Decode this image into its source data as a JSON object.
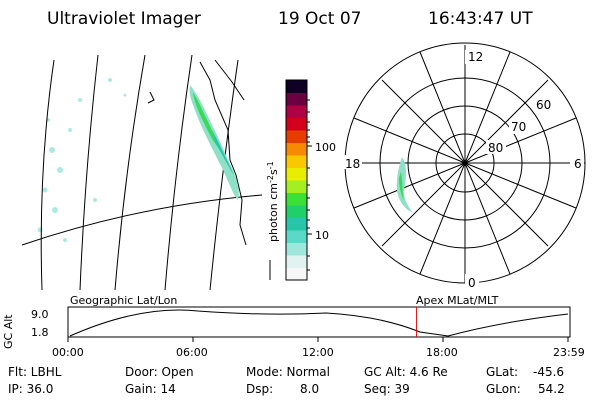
{
  "header": {
    "title": "Ultraviolet Imager",
    "date": "19 Oct 07",
    "time": "16:43:47 UT"
  },
  "colorbar": {
    "label": "photon cm",
    "label_sup1": "-2",
    "label_mid": "s",
    "label_sup2": "-1",
    "ticks": [
      "100",
      "10"
    ],
    "colors": [
      "#f7f7f7",
      "#e0f3f1",
      "#9fe6de",
      "#5cd8c8",
      "#27c6a8",
      "#1fcf6a",
      "#3edf34",
      "#a5ee22",
      "#e9ee00",
      "#f9c800",
      "#f78a00",
      "#e63c00",
      "#d2001c",
      "#b00044",
      "#6a0040",
      "#110026"
    ]
  },
  "polar": {
    "mlt_labels": {
      "top": "12",
      "right": "6",
      "bottom": "0",
      "left": "18"
    },
    "lat_labels": [
      "60",
      "70",
      "80"
    ]
  },
  "altitude_plot": {
    "ylabel": "GC Alt",
    "ymax": "9.0",
    "ymin": "1.8",
    "left_title": "Geographic Lat/Lon",
    "right_title": "Apex MLat/MLT",
    "xticks": [
      "00:00",
      "06:00",
      "12:00",
      "18:00",
      "23:59"
    ],
    "marker_hour": 16.73,
    "marker_color": "#e01010"
  },
  "footer": {
    "row1": {
      "filter": "Flt: LBHL",
      "door": "Door: Open",
      "mode": "Mode: Normal",
      "gc_alt": "GC Alt: 4.6 Re",
      "glat_label": "GLat:",
      "glat_value": "-45.6"
    },
    "row2": {
      "ip": "IP: 36.0",
      "gain": "Gain: 14",
      "dsp_label": "Dsp:",
      "dsp_value": "8.0",
      "seq": "Seq: 39",
      "glon_label": "GLon:",
      "glon_value": "54.2"
    }
  }
}
